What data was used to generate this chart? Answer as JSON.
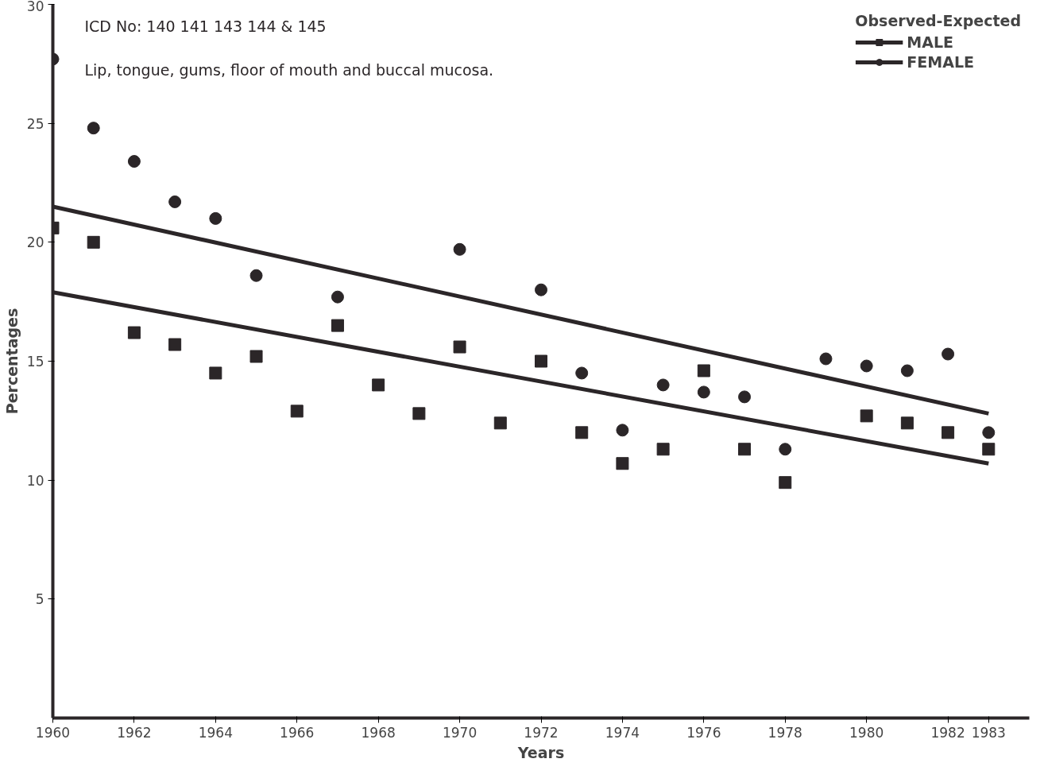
{
  "chart_data": {
    "type": "scatter",
    "xlabel": "Years",
    "ylabel": "Percentages",
    "legend_title": "Observed-Expected",
    "annotations": [
      "ICD No:   140 141 143 144 & 145",
      "Lip, tongue, gums, floor of mouth and buccal mucosa."
    ],
    "xlim": [
      1960,
      1984
    ],
    "xticks": [
      1960,
      1962,
      1964,
      1966,
      1968,
      1970,
      1972,
      1974,
      1976,
      1978,
      1980,
      1982,
      1983
    ],
    "ylim": [
      0,
      30
    ],
    "yticks": [
      5,
      10,
      15,
      20,
      25,
      30
    ],
    "grid": false,
    "legend": "top right",
    "series": [
      {
        "name": "MALE",
        "marker": "square",
        "color": "#2b2628",
        "x": [
          1960,
          1961,
          1962,
          1963,
          1964,
          1965,
          1966,
          1967,
          1968,
          1969,
          1970,
          1971,
          1972,
          1973,
          1974,
          1975,
          1976,
          1977,
          1978,
          1980,
          1981,
          1982,
          1983
        ],
        "values": [
          20.6,
          20.0,
          16.2,
          15.7,
          14.5,
          15.2,
          12.9,
          16.5,
          14.0,
          12.8,
          15.6,
          12.4,
          15.0,
          12.0,
          10.7,
          11.3,
          14.6,
          11.3,
          9.9,
          12.7,
          12.4,
          12.0,
          11.3
        ]
      },
      {
        "type": "line",
        "color": "#2b2628",
        "x": [
          1960,
          1983
        ],
        "values": [
          17.9,
          10.7
        ]
      },
      {
        "name": "FEMALE",
        "marker": "circle",
        "color": "#2b2628",
        "x": [
          1960,
          1961,
          1962,
          1963,
          1964,
          1965,
          1967,
          1970,
          1972,
          1973,
          1974,
          1975,
          1976,
          1977,
          1978,
          1979,
          1980,
          1981,
          1982,
          1983
        ],
        "values": [
          27.7,
          24.8,
          23.4,
          21.7,
          21.0,
          18.6,
          17.7,
          19.7,
          18.0,
          14.5,
          12.1,
          14.0,
          13.7,
          13.5,
          11.3,
          15.1,
          14.8,
          14.6,
          15.3,
          12.0
        ]
      },
      {
        "type": "line",
        "color": "#2b2628",
        "x": [
          1960,
          1983
        ],
        "values": [
          21.5,
          12.8
        ]
      }
    ]
  }
}
